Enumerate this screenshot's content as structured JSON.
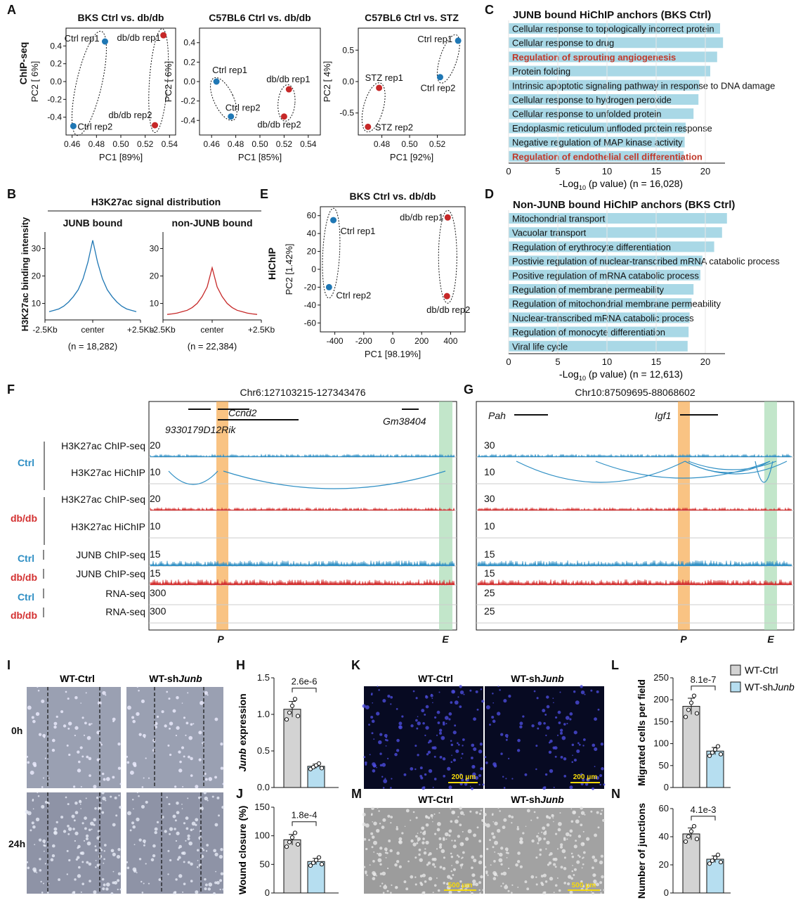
{
  "colors": {
    "blue": "#1f77b4",
    "red": "#c62828",
    "bar": "#a9d8e6",
    "track_blue": "#2f8fc4",
    "track_red": "#d32f2f",
    "orange": "#f6a94f",
    "green": "#a8dbb3",
    "grey_bar": "#d3d3d3",
    "light_blue_bar": "#b6def0"
  },
  "panel_letters": [
    "A",
    "B",
    "C",
    "D",
    "E",
    "F",
    "G",
    "H",
    "I",
    "J",
    "K",
    "L",
    "M",
    "N"
  ],
  "panelA": {
    "ylab_assay": "ChIP-seq",
    "charts": [
      {
        "title": "BKS Ctrl vs. db/db",
        "xlabel": "PC1 [89%]",
        "ylabel": "PC2 [ 6%]",
        "xticks": [
          "0.46",
          "0.48",
          "0.50",
          "0.52",
          "0.54"
        ],
        "yticks": [
          "0.4",
          "0.2",
          "0.0",
          "-0.2",
          "-0.4"
        ],
        "points": [
          {
            "label": "Ctrl rep1",
            "x": 0.487,
            "y": 0.45,
            "group": "ctrl"
          },
          {
            "label": "Ctrl rep2",
            "x": 0.461,
            "y": -0.5,
            "group": "ctrl"
          },
          {
            "label": "db/db rep1",
            "x": 0.535,
            "y": 0.52,
            "group": "db"
          },
          {
            "label": "db/db rep2",
            "x": 0.528,
            "y": -0.49,
            "group": "db"
          }
        ]
      },
      {
        "title": "C57BL6 Ctrl vs. db/db",
        "xlabel": "PC1 [85%]",
        "ylabel": "PC2 [ 6%]",
        "xticks": [
          "0.46",
          "0.48",
          "0.50",
          "0.52",
          "0.54"
        ],
        "yticks": [
          "0.4",
          "0.2",
          "0.0",
          "-0.2",
          "-0.4"
        ],
        "points": [
          {
            "label": "Ctrl rep1",
            "x": 0.464,
            "y": 0.0,
            "group": "ctrl"
          },
          {
            "label": "Ctrl rep2",
            "x": 0.476,
            "y": -0.36,
            "group": "ctrl"
          },
          {
            "label": "db/db rep1",
            "x": 0.524,
            "y": -0.08,
            "group": "db"
          },
          {
            "label": "db/db rep2",
            "x": 0.52,
            "y": -0.36,
            "group": "db"
          }
        ]
      },
      {
        "title": "C57BL6 Ctrl vs. STZ",
        "xlabel": "PC1 [92%]",
        "ylabel": "PC2 [ 4%]",
        "xticks": [
          "0.48",
          "0.50",
          "0.52"
        ],
        "yticks": [
          "0.5",
          "0.0",
          "-0.5"
        ],
        "points": [
          {
            "label": "Ctrl rep1",
            "x": 0.535,
            "y": 0.65,
            "group": "ctrl"
          },
          {
            "label": "Ctrl rep2",
            "x": 0.522,
            "y": 0.07,
            "group": "ctrl"
          },
          {
            "label": "STZ rep1",
            "x": 0.478,
            "y": -0.1,
            "group": "db"
          },
          {
            "label": "STZ rep2",
            "x": 0.47,
            "y": -0.72,
            "group": "db"
          }
        ]
      }
    ]
  },
  "panelB": {
    "title": "H3K27ac signal distribution",
    "ylabel": "H3K27ac binding intensity",
    "subpanels": [
      {
        "title": "JUNB bound",
        "n": "(n = 18,282)",
        "yticks": [
          "30",
          "20",
          "10"
        ],
        "xticks": [
          "-2.5Kb",
          "center",
          "+2.5Kb"
        ],
        "color": "blue",
        "profile": [
          7,
          7.5,
          8,
          9,
          10.5,
          12.5,
          15,
          19,
          25,
          33,
          25,
          19,
          15,
          12.5,
          10.5,
          9,
          8,
          7.5,
          7
        ]
      },
      {
        "title": "non-JUNB bound",
        "n": "(n = 22,384)",
        "yticks": [
          "30",
          "20",
          "10"
        ],
        "xticks": [
          "-2.5Kb",
          "center",
          "+2.5Kb"
        ],
        "color": "red",
        "profile": [
          6,
          6.2,
          6.5,
          7,
          7.5,
          8.5,
          10,
          12.5,
          16,
          23,
          16,
          12.5,
          10,
          8.5,
          7.5,
          7,
          6.5,
          6.2,
          6
        ]
      }
    ]
  },
  "panelC": {
    "title": "JUNB bound HiChIP anchors (BKS Ctrl)",
    "xlabel": "-Log",
    "xlabel_sub": "10",
    "xlabel_rest": " (p value)  (n = 16,028)",
    "xticks": [
      "0",
      "5",
      "10",
      "15",
      "20"
    ],
    "terms": [
      {
        "label": "Cellular response to topologically incorrect protein",
        "value": 21.5,
        "highlight": false
      },
      {
        "label": "Cellular response to drug",
        "value": 21.8,
        "highlight": false
      },
      {
        "label": "Regulation of sprouting angiogenesis",
        "value": 21.2,
        "highlight": true
      },
      {
        "label": "Protein folding",
        "value": 20.5,
        "highlight": false
      },
      {
        "label": "Intrinsic apoptotic signaling pathway in response to DNA damage",
        "value": 19.4,
        "highlight": false
      },
      {
        "label": "Cellular response to hydrogen peroxide",
        "value": 19.3,
        "highlight": false
      },
      {
        "label": "Cellular response to unfolded protein",
        "value": 18.8,
        "highlight": false
      },
      {
        "label": "Endoplasmic reticulum unfloded protein response",
        "value": 18.0,
        "highlight": false
      },
      {
        "label": "Negative regulation of MAP kinase activity",
        "value": 17.9,
        "highlight": false
      },
      {
        "label": "Regulation of endothelial cell differentiation",
        "value": 17.8,
        "highlight": true
      }
    ]
  },
  "panelD": {
    "title": "Non-JUNB bound HiChIP anchors (BKS Ctrl)",
    "xlabel": "-Log",
    "xlabel_sub": "10",
    "xlabel_rest": " (p value)  (n = 12,613)",
    "xticks": [
      "0",
      "5",
      "10",
      "15",
      "20"
    ],
    "terms": [
      {
        "label": "Mitochondrial transport",
        "value": 22.2,
        "highlight": false
      },
      {
        "label": "Vacuolar transport",
        "value": 21.7,
        "highlight": false
      },
      {
        "label": "Regulation of erythrocyte differentiation",
        "value": 20.9,
        "highlight": false
      },
      {
        "label": "Postivie regulation of nuclear-transcribed mRNA catabolic process",
        "value": 19.7,
        "highlight": false
      },
      {
        "label": "Positive regulation of mRNA catabolic process",
        "value": 19.5,
        "highlight": false
      },
      {
        "label": "Regulation of membrane permeability",
        "value": 18.8,
        "highlight": false
      },
      {
        "label": "Regulation of mitochondrial membrane permeability",
        "value": 18.6,
        "highlight": false
      },
      {
        "label": "Nuclear-transcribed mRNA catabolic process",
        "value": 18.4,
        "highlight": false
      },
      {
        "label": "Regulation of monocyte differentiation",
        "value": 18.3,
        "highlight": false
      },
      {
        "label": "Viral life cycle",
        "value": 18.2,
        "highlight": false
      }
    ]
  },
  "panelE": {
    "title": "BKS Ctrl vs. db/db",
    "assay": "HiChIP",
    "xlabel": "PC1 [98.19%]",
    "ylabel": "PC2 [1.42%]",
    "xticks": [
      "-400",
      "-200",
      "0",
      "200",
      "400"
    ],
    "yticks": [
      "60",
      "40",
      "20",
      "0",
      "-20",
      "-40",
      "-60"
    ],
    "points": [
      {
        "label": "Ctrl rep1",
        "x": -410,
        "y": 55,
        "group": "ctrl"
      },
      {
        "label": "Ctrl rep2",
        "x": -440,
        "y": -20,
        "group": "ctrl"
      },
      {
        "label": "db/db rep1",
        "x": 380,
        "y": 58,
        "group": "db"
      },
      {
        "label": "db/db rep2",
        "x": 375,
        "y": -30,
        "group": "db"
      }
    ]
  },
  "panelF": {
    "locus": "Chr6:127103215-127343476",
    "genes": [
      "Ccnd2",
      "9330179D12Rik",
      "Gm38404"
    ],
    "group_ctrl": "Ctrl",
    "group_db": "db/db",
    "tracks": [
      {
        "label": "H3K27ac ChIP-seq",
        "scale": "20",
        "group": "Ctrl"
      },
      {
        "label": "H3K27ac HiChIP",
        "scale": "10",
        "group": "Ctrl"
      },
      {
        "label": "H3K27ac ChIP-seq",
        "scale": "20",
        "group": "db/db"
      },
      {
        "label": "H3K27ac HiChIP",
        "scale": "10",
        "group": "db/db"
      },
      {
        "label": "JUNB ChIP-seq",
        "scale": "15",
        "group": "Ctrl"
      },
      {
        "label": "JUNB ChIP-seq",
        "scale": "15",
        "group": "db/db"
      },
      {
        "label": "RNA-seq",
        "scale": "300",
        "group": "Ctrl"
      },
      {
        "label": "RNA-seq",
        "scale": "300",
        "group": "db/db"
      }
    ],
    "markers": [
      "P",
      "E"
    ]
  },
  "panelG": {
    "locus": "Chr10:87509695-88068602",
    "genes": [
      "Pah",
      "Igf1"
    ],
    "scales": [
      "30",
      "10",
      "30",
      "10",
      "15",
      "15",
      "25",
      "25"
    ],
    "markers": [
      "P",
      "E"
    ]
  },
  "panelH": {
    "ylabel_italic": "Junb",
    "ylabel_rest": " expression",
    "yticks": [
      "1.5",
      "1.0",
      "0.5",
      "0.0"
    ],
    "pvalue": "2.6e-6",
    "values": [
      1.07,
      0.29
    ]
  },
  "panelI": {
    "cols": [
      "WT-Ctrl",
      "WT-sh"
    ],
    "cols_italic": [
      "",
      "Junb"
    ],
    "rows": [
      "0h",
      "24h"
    ]
  },
  "panelJ": {
    "ylabel": "Wound closure (%)",
    "yticks": [
      "150",
      "100",
      "50",
      "0"
    ],
    "pvalue": "1.8e-4",
    "values": [
      93,
      55
    ]
  },
  "panelK": {
    "cols": [
      "WT-Ctrl",
      "WT-sh"
    ],
    "cols_italic": [
      "",
      "Junb"
    ],
    "scalebar": "200 μm"
  },
  "panelL": {
    "ylabel": "Migrated cells per field",
    "yticks": [
      "250",
      "200",
      "150",
      "100",
      "50",
      "0"
    ],
    "pvalue": "8.1e-7",
    "values": [
      185,
      83
    ],
    "legend": [
      {
        "label": "WT-Ctrl",
        "italic": ""
      },
      {
        "label": "WT-sh",
        "italic": "Junb"
      }
    ]
  },
  "panelM": {
    "cols": [
      "WT-Ctrl",
      "WT-sh"
    ],
    "cols_italic": [
      "",
      "Junb"
    ],
    "scalebar": "500 μm"
  },
  "panelN": {
    "ylabel": "Number of junctions",
    "yticks": [
      "60",
      "40",
      "20",
      "0"
    ],
    "pvalue": "4.1e-3",
    "values": [
      42,
      24
    ]
  }
}
